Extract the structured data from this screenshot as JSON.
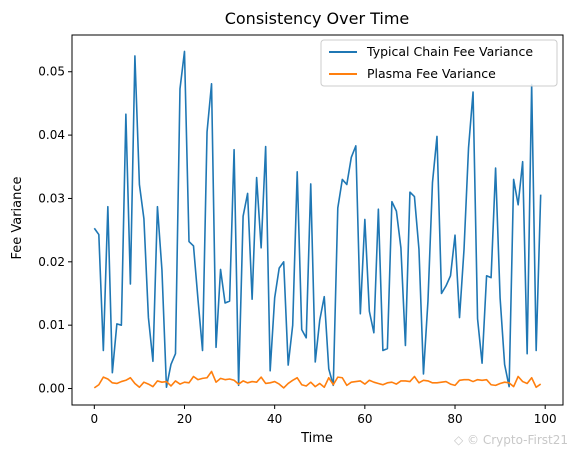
{
  "chart_data": {
    "type": "line",
    "title": "Consistency Over Time",
    "xlabel": "Time",
    "ylabel": "Fee Variance",
    "xlim": [
      -4.95,
      103.95
    ],
    "ylim": [
      -0.0026,
      0.0558
    ],
    "xticks": [
      0,
      20,
      40,
      60,
      80,
      100
    ],
    "yticks": [
      0.0,
      0.01,
      0.02,
      0.03,
      0.04,
      0.05
    ],
    "ytick_labels": [
      "0.00",
      "0.01",
      "0.02",
      "0.03",
      "0.04",
      "0.05"
    ],
    "grid": false,
    "legend_position": "top-right",
    "x": [
      0,
      1,
      2,
      3,
      4,
      5,
      6,
      7,
      8,
      9,
      10,
      11,
      12,
      13,
      14,
      15,
      16,
      17,
      18,
      19,
      20,
      21,
      22,
      23,
      24,
      25,
      26,
      27,
      28,
      29,
      30,
      31,
      32,
      33,
      34,
      35,
      36,
      37,
      38,
      39,
      40,
      41,
      42,
      43,
      44,
      45,
      46,
      47,
      48,
      49,
      50,
      51,
      52,
      53,
      54,
      55,
      56,
      57,
      58,
      59,
      60,
      61,
      62,
      63,
      64,
      65,
      66,
      67,
      68,
      69,
      70,
      71,
      72,
      73,
      74,
      75,
      76,
      77,
      78,
      79,
      80,
      81,
      82,
      83,
      84,
      85,
      86,
      87,
      88,
      89,
      90,
      91,
      92,
      93,
      94,
      95,
      96,
      97,
      98,
      99
    ],
    "series": [
      {
        "name": "Typical Chain Fee Variance",
        "color": "#1f77b4",
        "values": [
          0.0253,
          0.0243,
          0.006,
          0.0287,
          0.0025,
          0.0102,
          0.01,
          0.0433,
          0.0165,
          0.0525,
          0.0322,
          0.0268,
          0.0112,
          0.0043,
          0.0287,
          0.0187,
          0.0002,
          0.0038,
          0.0055,
          0.0473,
          0.0532,
          0.0232,
          0.0225,
          0.014,
          0.006,
          0.0405,
          0.0481,
          0.0065,
          0.0188,
          0.0135,
          0.0138,
          0.0377,
          0.0005,
          0.0272,
          0.0308,
          0.0141,
          0.0333,
          0.0222,
          0.0382,
          0.0028,
          0.0143,
          0.019,
          0.02,
          0.0037,
          0.01,
          0.0342,
          0.0093,
          0.008,
          0.0323,
          0.0042,
          0.0108,
          0.0145,
          0.0031,
          0.0005,
          0.0285,
          0.033,
          0.0322,
          0.0365,
          0.0383,
          0.0118,
          0.0267,
          0.0122,
          0.0088,
          0.0283,
          0.006,
          0.0063,
          0.0295,
          0.028,
          0.0222,
          0.0068,
          0.031,
          0.0303,
          0.022,
          0.0023,
          0.0138,
          0.0325,
          0.0398,
          0.015,
          0.0162,
          0.0178,
          0.0242,
          0.0112,
          0.022,
          0.038,
          0.0468,
          0.011,
          0.004,
          0.0178,
          0.0175,
          0.0348,
          0.0143,
          0.0038,
          0.0003,
          0.033,
          0.029,
          0.0358,
          0.0055,
          0.048,
          0.006,
          0.0306
        ]
      },
      {
        "name": "Plasma Fee Variance",
        "color": "#ff7f0e",
        "values": [
          0.0001,
          0.0006,
          0.0018,
          0.0015,
          0.0009,
          0.0008,
          0.0011,
          0.0013,
          0.0017,
          0.0008,
          0.0002,
          0.001,
          0.0007,
          0.0003,
          0.0012,
          0.001,
          0.0011,
          0.0004,
          0.0012,
          0.0007,
          0.001,
          0.0009,
          0.0019,
          0.0014,
          0.0016,
          0.0017,
          0.0027,
          0.001,
          0.0016,
          0.0014,
          0.0015,
          0.0013,
          0.0007,
          0.0012,
          0.0009,
          0.0011,
          0.001,
          0.0018,
          0.0008,
          0.0009,
          0.0011,
          0.0007,
          0.0001,
          0.0008,
          0.0013,
          0.0017,
          0.0006,
          0.0004,
          0.001,
          0.0003,
          0.0008,
          0.0002,
          0.0017,
          0.0006,
          0.0018,
          0.0017,
          0.0005,
          0.001,
          0.0011,
          0.0012,
          0.0007,
          0.0013,
          0.001,
          0.0008,
          0.0006,
          0.0009,
          0.001,
          0.0007,
          0.0012,
          0.0012,
          0.0011,
          0.0019,
          0.0009,
          0.0013,
          0.0012,
          0.0009,
          0.0009,
          0.001,
          0.0011,
          0.0007,
          0.0005,
          0.0013,
          0.0014,
          0.0014,
          0.0011,
          0.0014,
          0.0013,
          0.0014,
          0.0006,
          0.0005,
          0.0008,
          0.001,
          0.0009,
          0.0003,
          0.0019,
          0.0011,
          0.0008,
          0.0017,
          0.0002,
          0.0007
        ]
      }
    ]
  },
  "watermark": "Crypto-First21"
}
